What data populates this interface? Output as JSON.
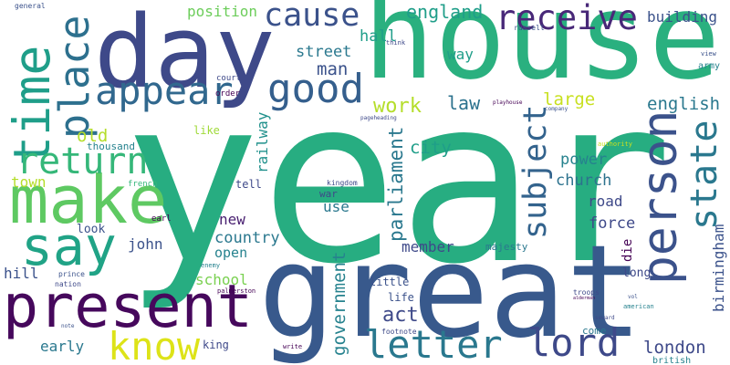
{
  "words": [
    "year",
    "great",
    "house",
    "day",
    "present",
    "make",
    "say",
    "time",
    "place",
    "appear",
    "good",
    "cause",
    "receive",
    "return",
    "person",
    "state",
    "subject",
    "letter",
    "lord",
    "know",
    "work",
    "law",
    "large",
    "english",
    "building",
    "england",
    "position",
    "hall",
    "street",
    "way",
    "man",
    "old",
    "thousand",
    "like",
    "railway",
    "city",
    "parliament",
    "power",
    "church",
    "road",
    "force",
    "town",
    "tell",
    "french",
    "war",
    "use",
    "new",
    "look",
    "earl",
    "kingdom",
    "country",
    "open",
    "john",
    "member",
    "majesty",
    "die",
    "birmingham",
    "hill",
    "school",
    "long",
    "government",
    "little",
    "life",
    "act",
    "troops",
    "early",
    "king",
    "london",
    "come",
    "british",
    "army",
    "court",
    "order",
    "general",
    "think",
    "russell",
    "view",
    "playhouse",
    "company",
    "pageheading",
    "authority",
    "prince",
    "nation",
    "palmerston",
    "enemy",
    "note",
    "footnote",
    "write",
    "american",
    "seward",
    "vol",
    "alderman"
  ]
}
